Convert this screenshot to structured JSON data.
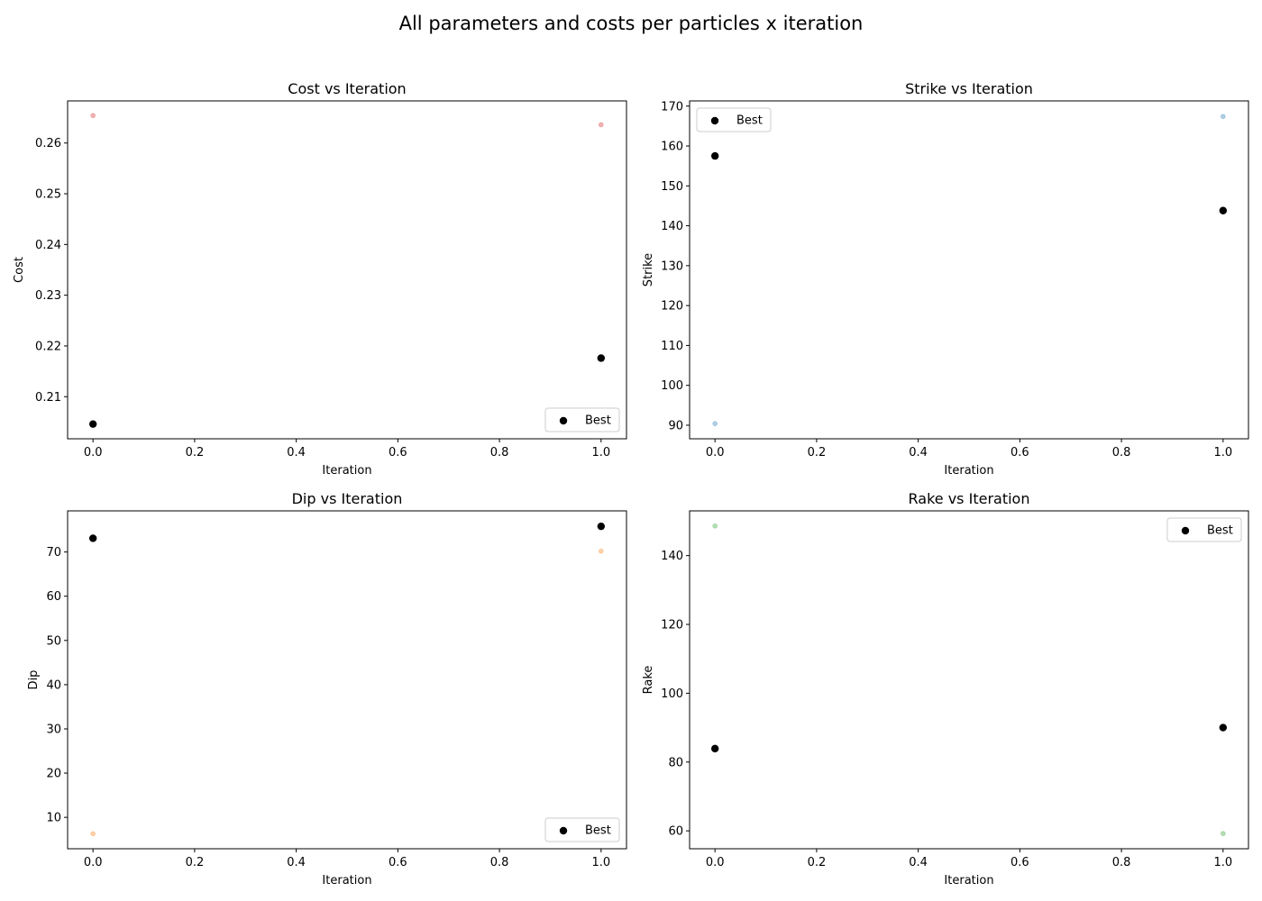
{
  "figure": {
    "title": "All parameters and costs per particles x iteration"
  },
  "chart_data": [
    {
      "type": "scatter",
      "title": "Cost vs Iteration",
      "xlabel": "Iteration",
      "ylabel": "Cost",
      "xlim": [
        -0.05,
        1.05
      ],
      "ylim": [
        0.2017,
        0.2683
      ],
      "xticks": [
        0.0,
        0.2,
        0.4,
        0.6,
        0.8,
        1.0
      ],
      "xtick_labels": [
        "0.0",
        "0.2",
        "0.4",
        "0.6",
        "0.8",
        "1.0"
      ],
      "yticks": [
        0.21,
        0.22,
        0.23,
        0.24,
        0.25,
        0.26
      ],
      "ytick_labels": [
        "0.21",
        "0.22",
        "0.23",
        "0.24",
        "0.25",
        "0.26"
      ],
      "grid": false,
      "legend_position": "lower-right",
      "series": [
        {
          "kind": "particles",
          "color": "#d62728",
          "points": [
            [
              0,
              0.2654
            ],
            [
              1,
              0.2636
            ]
          ]
        },
        {
          "kind": "best",
          "name": "Best",
          "color": "#000000",
          "points": [
            [
              0,
              0.2046
            ],
            [
              1,
              0.2176
            ]
          ]
        }
      ]
    },
    {
      "type": "scatter",
      "title": "Strike vs Iteration",
      "xlabel": "Iteration",
      "ylabel": "Strike",
      "xlim": [
        -0.05,
        1.05
      ],
      "ylim": [
        86.6,
        171.3
      ],
      "xticks": [
        0.0,
        0.2,
        0.4,
        0.6,
        0.8,
        1.0
      ],
      "xtick_labels": [
        "0.0",
        "0.2",
        "0.4",
        "0.6",
        "0.8",
        "1.0"
      ],
      "yticks": [
        90,
        100,
        110,
        120,
        130,
        140,
        150,
        160,
        170
      ],
      "ytick_labels": [
        "90",
        "100",
        "110",
        "120",
        "130",
        "140",
        "150",
        "160",
        "170"
      ],
      "grid": false,
      "legend_position": "upper-left",
      "series": [
        {
          "kind": "particles",
          "color": "#1f77b4",
          "points": [
            [
              0,
              90.4
            ],
            [
              1,
              167.4
            ]
          ]
        },
        {
          "kind": "best",
          "name": "Best",
          "color": "#000000",
          "points": [
            [
              0,
              157.5
            ],
            [
              1,
              143.8
            ]
          ]
        }
      ]
    },
    {
      "type": "scatter",
      "title": "Dip vs Iteration",
      "xlabel": "Iteration",
      "ylabel": "Dip",
      "xlim": [
        -0.05,
        1.05
      ],
      "ylim": [
        2.9,
        79.3
      ],
      "xticks": [
        0.0,
        0.2,
        0.4,
        0.6,
        0.8,
        1.0
      ],
      "xtick_labels": [
        "0.0",
        "0.2",
        "0.4",
        "0.6",
        "0.8",
        "1.0"
      ],
      "yticks": [
        10,
        20,
        30,
        40,
        50,
        60,
        70
      ],
      "ytick_labels": [
        "10",
        "20",
        "30",
        "40",
        "50",
        "60",
        "70"
      ],
      "grid": false,
      "legend_position": "lower-right",
      "series": [
        {
          "kind": "particles",
          "color": "#ff7f0e",
          "points": [
            [
              0,
              6.3
            ],
            [
              1,
              70.2
            ]
          ]
        },
        {
          "kind": "best",
          "name": "Best",
          "color": "#000000",
          "points": [
            [
              0,
              73.1
            ],
            [
              1,
              75.8
            ]
          ]
        }
      ]
    },
    {
      "type": "scatter",
      "title": "Rake vs Iteration",
      "xlabel": "Iteration",
      "ylabel": "Rake",
      "xlim": [
        -0.05,
        1.05
      ],
      "ylim": [
        54.8,
        153.0
      ],
      "xticks": [
        0.0,
        0.2,
        0.4,
        0.6,
        0.8,
        1.0
      ],
      "xtick_labels": [
        "0.0",
        "0.2",
        "0.4",
        "0.6",
        "0.8",
        "1.0"
      ],
      "yticks": [
        60,
        80,
        100,
        120,
        140
      ],
      "ytick_labels": [
        "60",
        "80",
        "100",
        "120",
        "140"
      ],
      "grid": false,
      "legend_position": "upper-right",
      "series": [
        {
          "kind": "particles",
          "color": "#2ca02c",
          "points": [
            [
              0,
              148.6
            ],
            [
              1,
              59.2
            ]
          ]
        },
        {
          "kind": "best",
          "name": "Best",
          "color": "#000000",
          "points": [
            [
              0,
              83.9
            ],
            [
              1,
              90.0
            ]
          ]
        }
      ]
    }
  ]
}
